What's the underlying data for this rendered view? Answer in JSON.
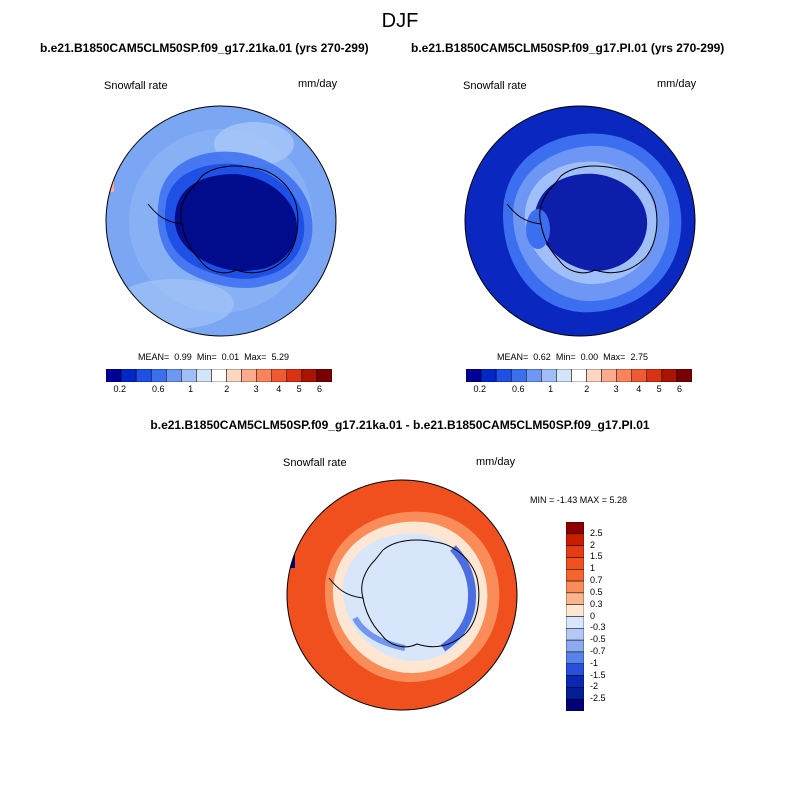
{
  "figure": {
    "title": "DJF",
    "variable_label": "Snowfall rate",
    "units_label": "mm/day"
  },
  "panels": [
    {
      "title": "b.e21.B1850CAM5CLM50SP.f09_g17.21ka.01 (yrs 270-299)",
      "stats": {
        "mean_label": "MEAN=",
        "mean": "0.99",
        "min_label": "Min=",
        "min": "0.01",
        "max_label": "Max=",
        "max": "5.29"
      }
    },
    {
      "title": "b.e21.B1850CAM5CLM50SP.f09_g17.PI.01 (yrs 270-299)",
      "stats": {
        "mean_label": "MEAN=",
        "mean": "0.62",
        "min_label": "Min=",
        "min": "0.00",
        "max_label": "Max=",
        "max": "2.75"
      }
    }
  ],
  "difference": {
    "title": "b.e21.B1850CAM5CLM50SP.f09_g17.21ka.01 - b.e21.B1850CAM5CLM50SP.f09_g17.PI.01",
    "minmax_text": "MIN = -1.43 MAX = 5.28"
  },
  "colorbars": {
    "abs_ticks": [
      "0.2",
      "0.6",
      "1",
      "2",
      "3",
      "4",
      "5",
      "6"
    ],
    "abs_colors": [
      "#000096",
      "#0028c8",
      "#1e50e6",
      "#3c6ef0",
      "#6e96f5",
      "#a0bef8",
      "#d2e6fa",
      "#ffffff",
      "#ffd7c3",
      "#ffaa8c",
      "#ff825a",
      "#f05a32",
      "#dc3214",
      "#aa1400",
      "#780000"
    ],
    "diff_ticks": [
      "2.5",
      "2",
      "1.5",
      "1",
      "0.7",
      "0.5",
      "0.3",
      "0",
      "-0.3",
      "-0.5",
      "-0.7",
      "-1",
      "-1.5",
      "-2",
      "-2.5"
    ],
    "diff_colors": [
      "#8c0000",
      "#c81e00",
      "#e63c14",
      "#f0501e",
      "#f5642d",
      "#fa8c5a",
      "#fcb48c",
      "#fde6d2",
      "#d7e6fa",
      "#b4c8f5",
      "#8caaf0",
      "#5a82eb",
      "#2850dc",
      "#0a28b4",
      "#001e96",
      "#000078"
    ]
  },
  "colors": {
    "ocean_21ka": "#7aa6f3",
    "ice_21ka": "#000c8c",
    "ocean_pi": "#0a28c0",
    "ice_pi": "#0c1eaa",
    "ocean_diff": "#f0501e",
    "ice_diff": "#d7e6fa"
  }
}
